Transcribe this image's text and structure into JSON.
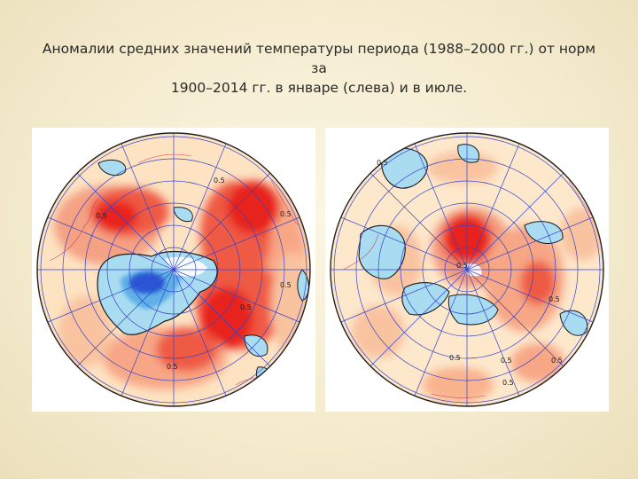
{
  "caption": {
    "line1": "Аномалии средних значений температуры периода (1988–2000 гг.) от норм за",
    "line2": "1900–2014 гг. в январе (слева) и в июле."
  },
  "maps": [
    {
      "id": "january",
      "contour_labels": [
        "0.5",
        "0.5",
        "0.5",
        "0.5",
        "0.5",
        "0.5"
      ]
    },
    {
      "id": "july",
      "contour_labels": [
        "0.5",
        "0.5",
        "0.5",
        "0.5",
        "0.5",
        "0.5",
        "0.5"
      ]
    }
  ],
  "colors": {
    "warm_strong": "#e8201c",
    "warm_mid": "#f26a4f",
    "warm_light": "#f9b38d",
    "warm_faint": "#fbd9b6",
    "neutral": "#fdeccf",
    "cool_light": "#a9dcf0",
    "cool_mid": "#5fb0e8",
    "cool_strong": "#2a57d6",
    "graticule": "#3344cc",
    "coast": "#d03050"
  }
}
